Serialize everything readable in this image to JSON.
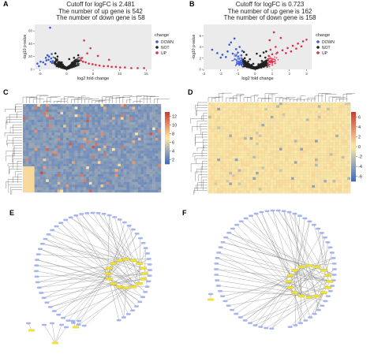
{
  "chart_data": [
    {
      "type": "scatter",
      "panel_label": "A",
      "title_lines": [
        "Cutoff for logFC is 2.481",
        "The number of up gene is 542",
        "The number of down gene is 58"
      ],
      "xlabel": "log2 fold change",
      "ylabel": "-log10 p-value",
      "xlim": [
        -6,
        16
      ],
      "ylim": [
        0,
        70
      ],
      "xticks": [
        "-5",
        "0",
        "5",
        "10",
        "15"
      ],
      "yticks": [
        "0",
        "20",
        "40",
        "60"
      ],
      "legend_title": "change",
      "legend": [
        "DOWN",
        "NOT",
        "UP"
      ],
      "legend_position": "right",
      "colors": {
        "DOWN": "#3b5bd6",
        "NOT": "#222222",
        "UP": "#d9304a"
      },
      "series": [
        {
          "name": "DOWN",
          "x": [
            -3.0,
            -3.4,
            -2.7,
            -4.0,
            -5.2,
            -3.6,
            -2.9,
            -4.4,
            -3.1,
            -2.6,
            -3.8,
            -5.5,
            -4.9,
            -2.8,
            -3.3,
            -3.9
          ],
          "y": [
            12,
            15,
            10,
            8,
            5,
            22,
            17,
            11,
            65,
            13,
            14,
            9,
            12,
            24,
            20,
            18
          ]
        },
        {
          "name": "NOT",
          "x": [
            -2.3,
            -1.9,
            -1.5,
            -1.1,
            -0.6,
            -0.2,
            0.3,
            0.8,
            1.2,
            1.6,
            2.0,
            2.3,
            -1.7,
            -0.9,
            0.5,
            1.4,
            2.2,
            -2.1,
            0.1,
            1.0
          ],
          "y": [
            10,
            14,
            8,
            6,
            4,
            2,
            3,
            5,
            7,
            9,
            12,
            13,
            20,
            11,
            16,
            18,
            22,
            25,
            1,
            10
          ]
        },
        {
          "name": "UP",
          "x": [
            2.7,
            3.1,
            3.6,
            4.2,
            4.9,
            5.5,
            6.2,
            7.0,
            7.8,
            8.5,
            9.3,
            10.1,
            11.0,
            12.2,
            13.4,
            14.6,
            3.3,
            4.5,
            5.9,
            8.0,
            2.9,
            3.9
          ],
          "y": [
            14,
            12,
            11,
            9,
            8,
            7,
            6,
            5,
            5,
            4,
            4,
            3,
            3,
            2,
            2,
            2,
            45,
            33,
            21,
            15,
            18,
            25
          ]
        }
      ]
    },
    {
      "type": "scatter",
      "panel_label": "B",
      "title_lines": [
        "Cutoff for logFC is 0.723",
        "The number of up gene is 162",
        "The number of down gene is 158"
      ],
      "xlabel": "log2 fold change",
      "ylabel": "-log10 p-value",
      "xlim": [
        -3,
        3.3
      ],
      "ylim": [
        0,
        8
      ],
      "xticks": [
        "-3",
        "-2",
        "-1",
        "0",
        "1",
        "2",
        "3"
      ],
      "yticks": [
        "0",
        "2",
        "4",
        "6"
      ],
      "legend_title": "change",
      "legend": [
        "DOWN",
        "NOT",
        "UP"
      ],
      "legend_position": "right",
      "colors": {
        "DOWN": "#3b5bd6",
        "NOT": "#222222",
        "UP": "#d9304a"
      },
      "series": [
        {
          "name": "DOWN",
          "x": [
            -0.8,
            -1.0,
            -1.3,
            -1.6,
            -1.9,
            -2.2,
            -2.5,
            -0.9,
            -1.2,
            -1.5,
            -1.1,
            -0.75,
            -1.7,
            -2.0,
            -1.4
          ],
          "y": [
            2.5,
            3.0,
            2.8,
            3.2,
            2.6,
            2.9,
            3.5,
            4.0,
            5.5,
            4.4,
            3.6,
            3.3,
            2.2,
            2.1,
            4.8
          ]
        },
        {
          "name": "NOT",
          "x": [
            -0.6,
            -0.4,
            -0.2,
            0.0,
            0.2,
            0.4,
            0.6,
            -0.5,
            0.3,
            -0.1,
            0.5,
            -0.3,
            0.1,
            0.65,
            -0.65
          ],
          "y": [
            2.0,
            1.4,
            0.8,
            0.4,
            0.9,
            1.5,
            2.1,
            2.6,
            2.4,
            1.0,
            3.0,
            1.8,
            2.8,
            3.2,
            3.1
          ]
        },
        {
          "name": "UP",
          "x": [
            0.8,
            1.0,
            1.3,
            1.6,
            1.9,
            2.2,
            2.5,
            2.8,
            3.0,
            0.9,
            1.2,
            1.5,
            1.8,
            2.1,
            2.4,
            2.7,
            1.1,
            0.85
          ],
          "y": [
            2.4,
            2.7,
            3.0,
            3.4,
            3.8,
            4.2,
            4.6,
            5.0,
            5.3,
            3.5,
            4.0,
            5.6,
            2.9,
            3.2,
            3.7,
            4.1,
            6.6,
            5.2
          ]
        }
      ]
    },
    {
      "type": "heatmap",
      "panel_label": "C",
      "colorbar_ticks": [
        "12",
        "10",
        "8",
        "6",
        "4",
        "2"
      ],
      "colorbar_range": [
        1,
        13
      ],
      "colors": {
        "low": "#3f6cc2",
        "mid": "#fde9a6",
        "high": "#cf3b33"
      }
    },
    {
      "type": "heatmap",
      "panel_label": "D",
      "colorbar_ticks": [
        "6",
        "4",
        "2",
        "0",
        "-2",
        "-4",
        "-6"
      ],
      "colorbar_range": [
        -7,
        7
      ],
      "colors": {
        "low": "#3f6cc2",
        "mid": "#fde9a6",
        "high": "#cf3b33"
      }
    }
  ],
  "networks": [
    {
      "panel_label": "E",
      "node_color": "#a8b4ee",
      "hub_color": "#f0e23c",
      "edge_color": "#8a8a8a"
    },
    {
      "panel_label": "F",
      "node_color": "#a8b4ee",
      "hub_color": "#f0e23c",
      "edge_color": "#8a8a8a"
    }
  ]
}
